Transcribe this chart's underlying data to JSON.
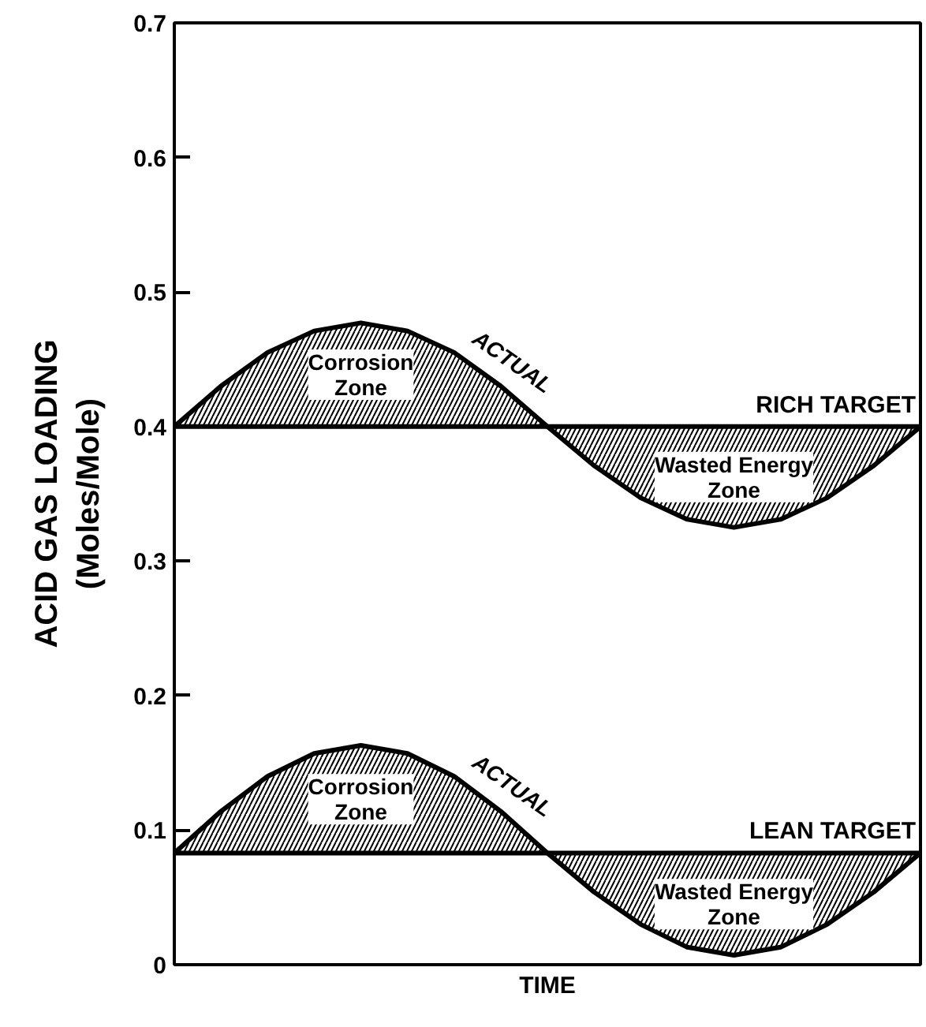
{
  "chart_data": {
    "type": "line",
    "xlabel": "TIME",
    "ylabel": "ACID GAS LOADING\n(Moles/Mole)",
    "categories": [
      null,
      null,
      null,
      null,
      null,
      null,
      null,
      null,
      null,
      null,
      null,
      null,
      null,
      null,
      null,
      null,
      null
    ],
    "series": [
      {
        "name": "ACTUAL",
        "color": "#000000",
        "values": [
          0.4,
          0.43,
          0.455,
          0.471,
          0.477,
          0.471,
          0.455,
          0.43,
          0.4,
          0.371,
          0.347,
          0.331,
          0.325,
          0.331,
          0.347,
          0.371,
          0.4
        ],
        "lower": [
          0.4,
          0.4,
          0.4,
          0.4,
          0.4,
          0.4,
          0.4,
          0.4,
          0.4,
          0.371,
          0.347,
          0.331,
          0.325,
          0.331,
          0.347,
          0.371,
          0.4
        ],
        "upper": [
          0.4,
          0.43,
          0.455,
          0.471,
          0.477,
          0.471,
          0.455,
          0.43,
          0.4,
          0.4,
          0.4,
          0.4,
          0.4,
          0.4,
          0.4,
          0.4,
          0.4
        ]
      },
      {
        "name": "ACTUAL",
        "color": "#000000",
        "values": [
          0.083,
          0.114,
          0.14,
          0.157,
          0.163,
          0.157,
          0.14,
          0.114,
          0.083,
          0.054,
          0.03,
          0.013,
          0.007,
          0.013,
          0.03,
          0.054,
          0.083
        ],
        "lower": [
          0.083,
          0.083,
          0.083,
          0.083,
          0.083,
          0.083,
          0.083,
          0.083,
          0.083,
          0.054,
          0.03,
          0.013,
          0.007,
          0.013,
          0.03,
          0.054,
          0.083
        ],
        "upper": [
          0.083,
          0.114,
          0.14,
          0.157,
          0.163,
          0.157,
          0.14,
          0.114,
          0.083,
          0.083,
          0.083,
          0.083,
          0.083,
          0.083,
          0.083,
          0.083,
          0.083
        ]
      }
    ],
    "ref_lines": [
      {
        "axis": "y",
        "value": 0.4,
        "label": "RICH TARGET",
        "color": "#000000"
      },
      {
        "axis": "y",
        "value": 0.083,
        "label": "LEAN TARGET",
        "color": "#000000"
      }
    ],
    "annotations": [
      "Corrosion\nZone",
      "Wasted Energy\nZone",
      "Corrosion\nZone",
      "Wasted Energy\nZone"
    ],
    "ylim": [
      0,
      0.7
    ],
    "yticks": [
      0,
      0.1,
      0.2,
      0.3,
      0.4,
      0.5,
      0.6,
      0.7
    ],
    "grid": false,
    "tick_labels": "y"
  }
}
